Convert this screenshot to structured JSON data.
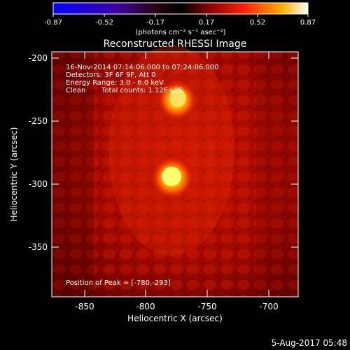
{
  "colorbar": {
    "ticks": [
      "-0.87",
      "-0.52",
      "-0.17",
      "0.17",
      "0.52",
      "0.87"
    ],
    "unit": "(photons cm⁻² s⁻¹ asec⁻²)"
  },
  "title": "Reconstructed RHESSI Image",
  "annotations": {
    "time_range": "16-Nov-2014 07:14:06.000 to 07:24:06.000",
    "detectors": "Detectors: 3F 6F 9F, Att 0",
    "energy": "Energy Range: 3.0 - 6.0 keV",
    "algorithm": "Clean",
    "total_counts": "Total counts: 1.12E+05",
    "peak": "Position of Peak = [-780,-293]"
  },
  "axes": {
    "xlabel": "Heliocentric X (arcsec)",
    "ylabel": "Heliocentric Y (arcsec)",
    "xticks": [
      "-850",
      "-800",
      "-750",
      "-700"
    ],
    "yticks": [
      "-200",
      "-250",
      "-300",
      "-350"
    ]
  },
  "timestamp": "5-Aug-2017 05:48"
}
